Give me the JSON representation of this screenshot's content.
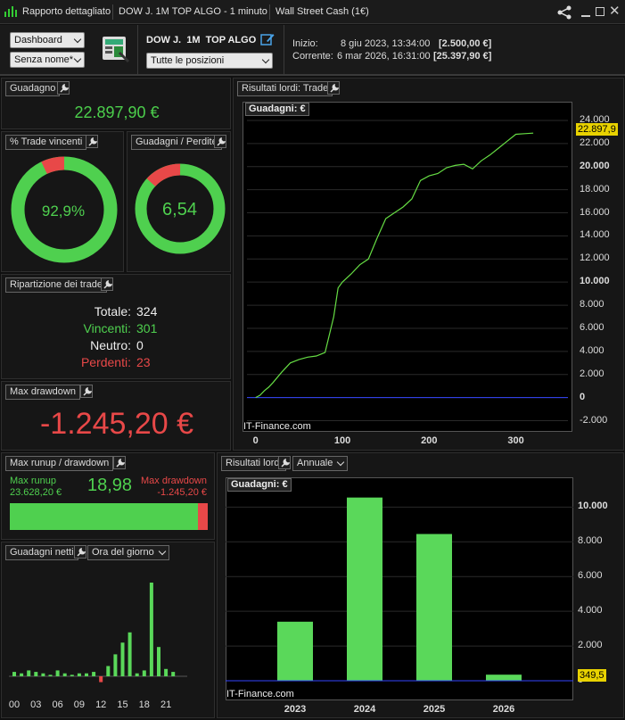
{
  "titlebar": {
    "report": "Rapporto dettagliato",
    "strategy": "DOW J.  1M  TOP ALGO - 1 minuto",
    "market": "Wall Street Cash (1€)"
  },
  "toolbar": {
    "view": "Dashboard",
    "name": "Senza nome*",
    "strategy_name": "DOW J.  1M  TOP ALGO",
    "positions": "Tutte le posizioni",
    "start_label": "Inizio:",
    "start_date": "8 giu 2023, 13:34:00",
    "start_value": "[2.500,00 €]",
    "current_label": "Corrente:",
    "current_date": "6 mar 2026, 16:31:00",
    "current_value": "[25.397,90 €]"
  },
  "gain": {
    "title": "Guadagno",
    "value": "22.897,90 €"
  },
  "win_pct": {
    "title": "% Trade vincenti",
    "value": "92,9%",
    "fraction": 0.929
  },
  "gain_loss": {
    "title": "Guadagni / Perdite",
    "value": "6,54",
    "fraction": 0.867
  },
  "breakdown": {
    "title": "Ripartizione dei trade",
    "total_label": "Totale:",
    "total": "324",
    "win_label": "Vincenti:",
    "win": "301",
    "neutral_label": "Neutro:",
    "neutral": "0",
    "loss_label": "Perdenti:",
    "loss": "23"
  },
  "drawdown": {
    "title": "Max drawdown",
    "value": "-1.245,20 €"
  },
  "runup": {
    "title": "Max runup / drawdown",
    "runup_label": "Max runup",
    "runup_value": "23.628,20 €",
    "ratio": "18,98",
    "dd_label": "Max drawdown",
    "dd_value": "-1.245,20 €",
    "runup_fraction": 0.95
  },
  "hourly": {
    "title": "Guadagni netti",
    "mode": "Ora del giorno",
    "tick_labels": [
      "00",
      "03",
      "06",
      "09",
      "12",
      "15",
      "18",
      "21"
    ]
  },
  "trades_chart": {
    "title": "Risultati lordi: Trade",
    "tag": "Guadagni: €",
    "current_label": "22.897,9",
    "watermark": "IT-Finance.com",
    "y_ticks": [
      "24.000",
      "22.000",
      "20.000",
      "18.000",
      "16.000",
      "14.000",
      "12.000",
      "10.000",
      "8.000",
      "6.000",
      "4.000",
      "2.000",
      "0",
      "-2.000"
    ],
    "x_ticks": [
      "0",
      "100",
      "200",
      "300"
    ]
  },
  "annual_chart": {
    "title": "Risultati lordi",
    "mode": "Annuale",
    "tag": "Guadagni: €",
    "current_label": "349,5",
    "watermark": "IT-Finance.com",
    "y_ticks": [
      "10.000",
      "8.000",
      "6.000",
      "4.000",
      "2.000",
      "0"
    ],
    "x_ticks": [
      "2023",
      "2024",
      "2025",
      "2026"
    ]
  },
  "chart_data": [
    {
      "type": "line",
      "title": "Risultati lordi: Trade",
      "series": [
        {
          "name": "Guadagni: €",
          "x": [
            0,
            5,
            10,
            15,
            20,
            30,
            40,
            50,
            60,
            70,
            80,
            90,
            95,
            100,
            110,
            120,
            130,
            140,
            150,
            160,
            170,
            180,
            190,
            200,
            210,
            220,
            230,
            240,
            250,
            260,
            270,
            280,
            290,
            300,
            310,
            320
          ],
          "y": [
            0,
            200,
            600,
            900,
            1300,
            2200,
            3000,
            3300,
            3500,
            3600,
            3900,
            7000,
            9500,
            10000,
            10700,
            11500,
            12000,
            13800,
            15500,
            16000,
            16500,
            17200,
            18800,
            19200,
            19400,
            19900,
            20100,
            20200,
            19800,
            20500,
            21000,
            21600,
            22200,
            22800,
            22850,
            22897.9
          ]
        }
      ],
      "xlim": [
        -10,
        360
      ],
      "ylim": [
        -2500,
        25000
      ]
    },
    {
      "type": "bar",
      "title": "Risultati lordi",
      "categories": [
        "2023",
        "2024",
        "2025",
        "2026"
      ],
      "values": [
        3400,
        10550,
        8450,
        349.5
      ],
      "ylim": [
        0,
        11200
      ]
    },
    {
      "type": "bar",
      "title": "Guadagni netti",
      "categories": [
        "00",
        "01",
        "02",
        "03",
        "04",
        "05",
        "06",
        "07",
        "08",
        "09",
        "10",
        "11",
        "12",
        "13",
        "14",
        "15",
        "16",
        "17",
        "18",
        "19",
        "20",
        "21",
        "22",
        "23"
      ],
      "values": [
        300,
        200,
        400,
        300,
        200,
        100,
        400,
        200,
        100,
        200,
        200,
        300,
        -400,
        700,
        1500,
        2300,
        3000,
        200,
        400,
        6400,
        2000,
        500,
        300,
        0
      ]
    }
  ]
}
